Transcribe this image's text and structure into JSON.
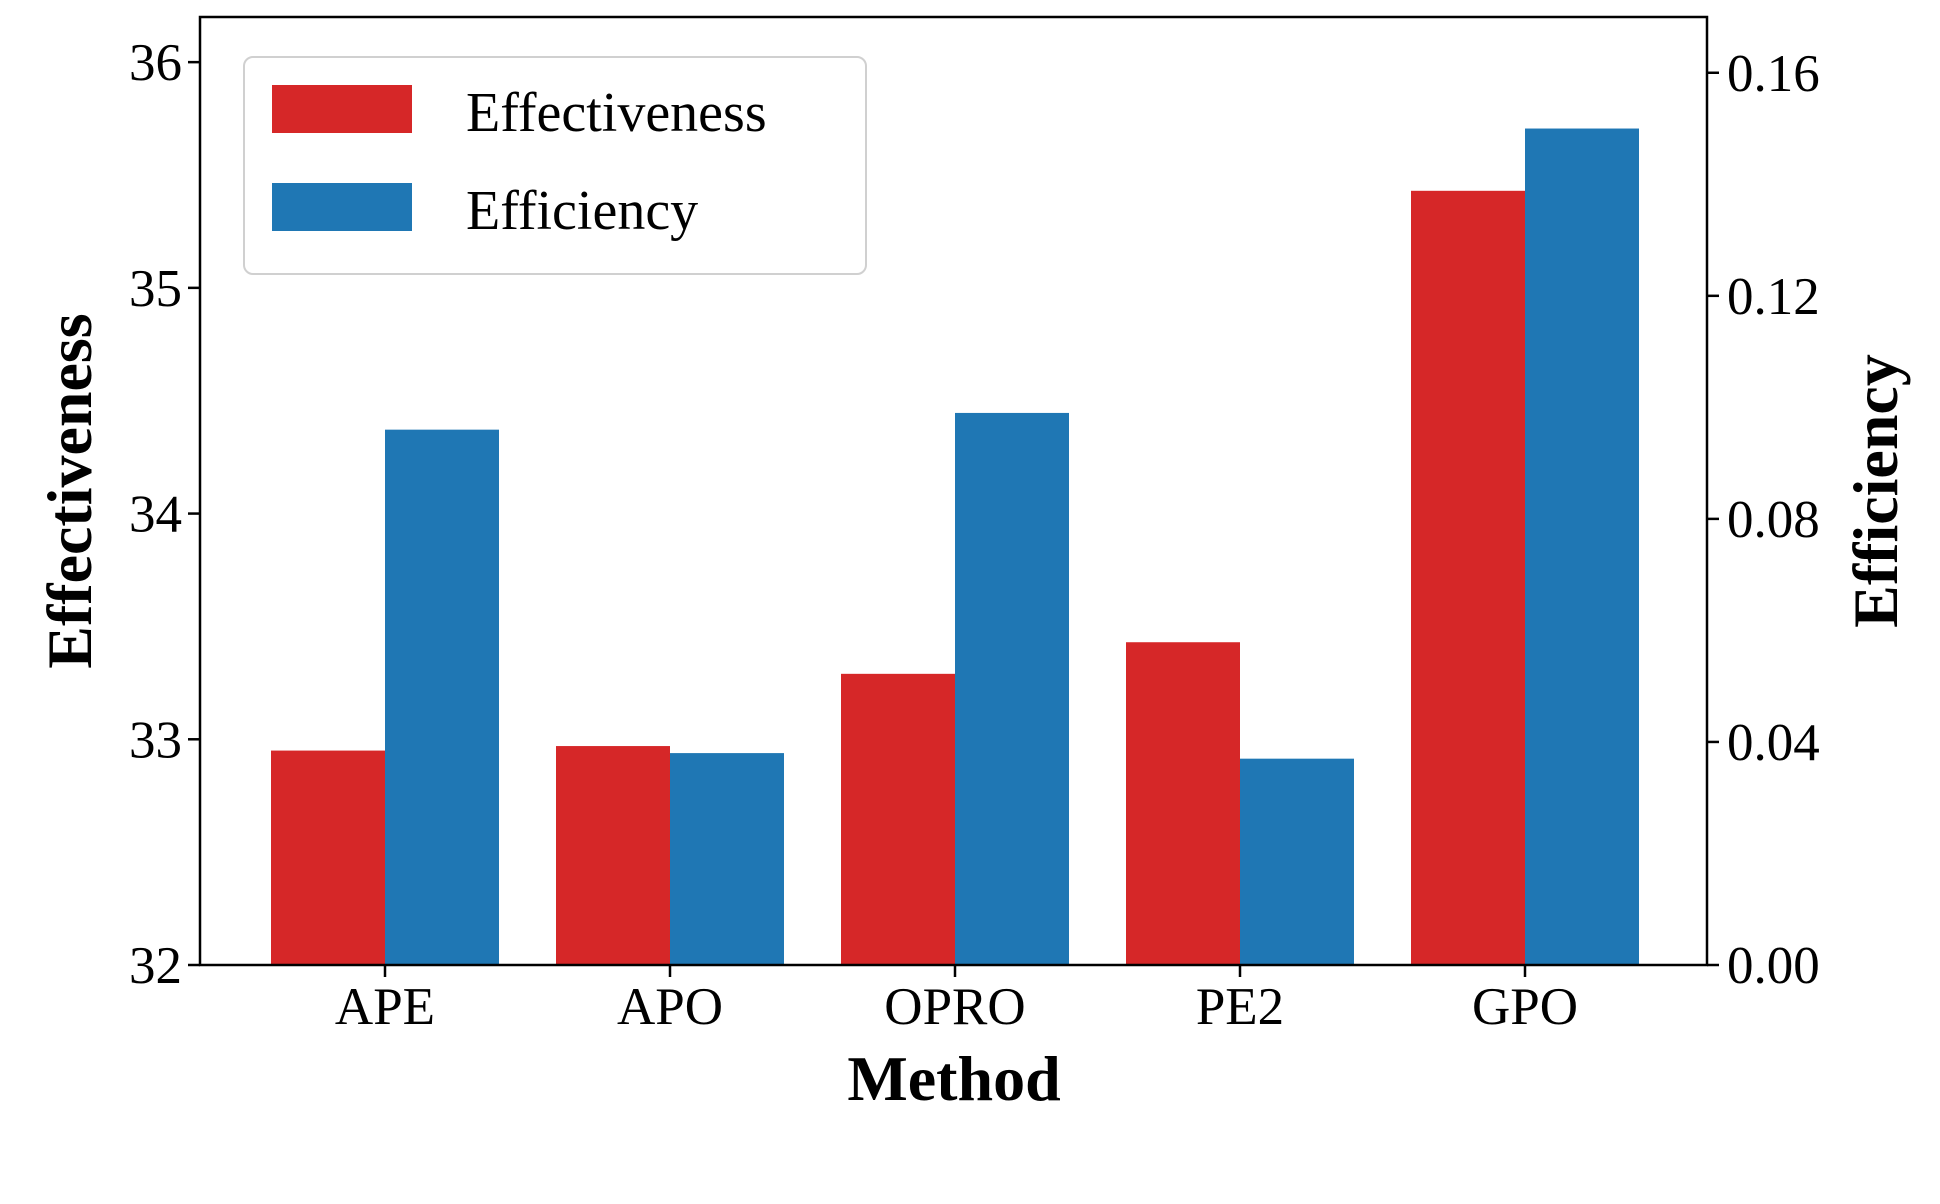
{
  "chart_data": {
    "type": "bar",
    "categories": [
      "APE",
      "APO",
      "OPRO",
      "PE2",
      "GPO"
    ],
    "series": [
      {
        "name": "Effectiveness",
        "axis": "left",
        "color": "#d62728",
        "values": [
          32.95,
          32.97,
          33.29,
          33.43,
          35.43
        ]
      },
      {
        "name": "Efficiency",
        "axis": "right",
        "color": "#1f77b4",
        "values": [
          0.096,
          0.038,
          0.099,
          0.037,
          0.15
        ]
      }
    ],
    "xlabel": "Method",
    "ylabel_left": "Effectiveness",
    "ylabel_right": "Efficiency",
    "ylim_left": [
      32,
      36.2
    ],
    "ylim_right": [
      0,
      0.17
    ],
    "yticks_left": [
      "32",
      "33",
      "34",
      "35",
      "36"
    ],
    "yticks_right": [
      "0.00",
      "0.04",
      "0.08",
      "0.12",
      "0.16"
    ],
    "legend": {
      "position": "top-left",
      "entries": [
        "Effectiveness",
        "Efficiency"
      ]
    },
    "grid": false
  }
}
